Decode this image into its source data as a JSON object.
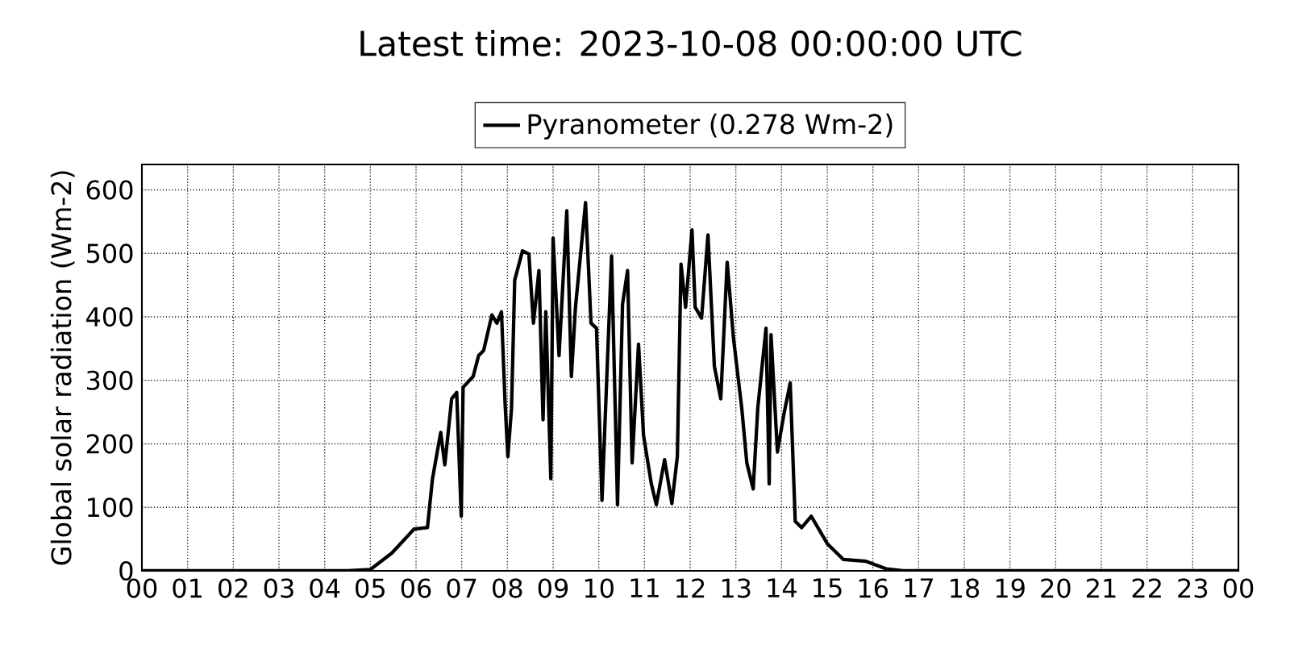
{
  "chart_data": {
    "type": "line",
    "title": "Latest time: 2023-10-08 00:00:00 UTC",
    "ylabel": "Global solar radiation (Wm-2)",
    "series": [
      {
        "name": "Pyranometer (0.278 Wm-2)",
        "color": "#000000",
        "x": [
          0,
          4.5,
          5.0,
          5.47,
          5.96,
          6.25,
          6.36,
          6.54,
          6.63,
          6.78,
          6.89,
          6.99,
          7.03,
          7.25,
          7.37,
          7.48,
          7.66,
          7.77,
          7.87,
          7.95,
          8.01,
          8.09,
          8.16,
          8.33,
          8.47,
          8.57,
          8.69,
          8.78,
          8.84,
          8.95,
          9.0,
          9.13,
          9.3,
          9.4,
          9.49,
          9.71,
          9.83,
          9.95,
          10.07,
          10.28,
          10.41,
          10.52,
          10.63,
          10.73,
          10.87,
          10.98,
          11.15,
          11.26,
          11.44,
          11.6,
          11.72,
          11.8,
          11.9,
          12.04,
          12.11,
          12.25,
          12.39,
          12.53,
          12.67,
          12.81,
          12.95,
          13.13,
          13.24,
          13.38,
          13.48,
          13.66,
          13.73,
          13.77,
          13.91,
          14.05,
          14.19,
          14.3,
          14.44,
          14.65,
          15.0,
          15.35,
          15.85,
          16.3,
          16.7,
          24
        ],
        "values": [
          0,
          0,
          2,
          28,
          66,
          68,
          145,
          218,
          167,
          271,
          281,
          86,
          289,
          306,
          339,
          347,
          403,
          390,
          408,
          263,
          180,
          256,
          458,
          504,
          499,
          390,
          473,
          238,
          408,
          145,
          524,
          339,
          567,
          306,
          415,
          580,
          390,
          382,
          111,
          496,
          104,
          420,
          473,
          170,
          357,
          213,
          137,
          104,
          175,
          106,
          180,
          483,
          415,
          537,
          415,
          398,
          529,
          322,
          271,
          486,
          365,
          256,
          170,
          129,
          256,
          382,
          137,
          372,
          187,
          246,
          296,
          78,
          68,
          86,
          43,
          18,
          15,
          3,
          0,
          0
        ]
      }
    ],
    "xlim": [
      0,
      24
    ],
    "xticks": [
      {
        "value": 0,
        "label": "00"
      },
      {
        "value": 1,
        "label": "01"
      },
      {
        "value": 2,
        "label": "02"
      },
      {
        "value": 3,
        "label": "03"
      },
      {
        "value": 4,
        "label": "04"
      },
      {
        "value": 5,
        "label": "05"
      },
      {
        "value": 6,
        "label": "06"
      },
      {
        "value": 7,
        "label": "07"
      },
      {
        "value": 8,
        "label": "08"
      },
      {
        "value": 9,
        "label": "09"
      },
      {
        "value": 10,
        "label": "10"
      },
      {
        "value": 11,
        "label": "11"
      },
      {
        "value": 12,
        "label": "12"
      },
      {
        "value": 13,
        "label": "13"
      },
      {
        "value": 14,
        "label": "14"
      },
      {
        "value": 15,
        "label": "15"
      },
      {
        "value": 16,
        "label": "16"
      },
      {
        "value": 17,
        "label": "17"
      },
      {
        "value": 18,
        "label": "18"
      },
      {
        "value": 19,
        "label": "19"
      },
      {
        "value": 20,
        "label": "20"
      },
      {
        "value": 21,
        "label": "21"
      },
      {
        "value": 22,
        "label": "22"
      },
      {
        "value": 23,
        "label": "23"
      },
      {
        "value": 24,
        "label": "00"
      }
    ],
    "ylim": [
      0,
      640
    ],
    "yticks": [
      0,
      100,
      200,
      300,
      400,
      500,
      600
    ],
    "grid": true,
    "legend": "top",
    "marker": "none",
    "line_style": "solid"
  }
}
